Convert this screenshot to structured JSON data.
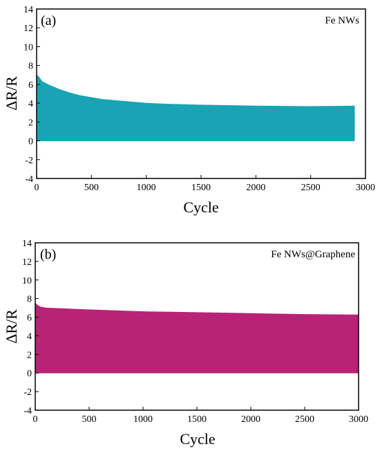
{
  "chart_data": [
    {
      "type": "area",
      "panel_label": "(a)",
      "series": [
        {
          "name": "Fe NWs",
          "color": "#1AA3B4",
          "x": [
            0,
            20,
            50,
            100,
            200,
            300,
            400,
            500,
            600,
            800,
            1000,
            1200,
            1500,
            2000,
            2500,
            2900
          ],
          "upper": [
            7.0,
            6.8,
            6.3,
            6.0,
            5.5,
            5.1,
            4.8,
            4.6,
            4.4,
            4.2,
            4.0,
            3.9,
            3.8,
            3.7,
            3.65,
            3.7
          ],
          "lower": [
            0,
            0,
            0,
            0,
            0,
            0,
            0,
            0,
            0,
            0,
            0,
            0,
            0,
            0,
            0,
            0
          ]
        }
      ],
      "xlabel": "Cycle",
      "ylabel": "ΔR/R",
      "xlim": [
        0,
        3000
      ],
      "ylim": [
        -4,
        14
      ],
      "xticks": [
        0,
        500,
        1000,
        1500,
        2000,
        2500,
        3000
      ],
      "yticks": [
        -4,
        -2,
        0,
        2,
        4,
        6,
        8,
        10,
        12,
        14
      ],
      "legend_position": "top-right",
      "grid": false
    },
    {
      "type": "area",
      "panel_label": "(b)",
      "series": [
        {
          "name": "Fe NWs@Graphene",
          "color": "#B82377",
          "x": [
            0,
            20,
            50,
            100,
            300,
            500,
            1000,
            1500,
            2000,
            2500,
            3000
          ],
          "upper": [
            7.5,
            7.3,
            7.1,
            7.0,
            6.9,
            6.8,
            6.6,
            6.5,
            6.4,
            6.3,
            6.25
          ],
          "lower": [
            0,
            0,
            0,
            0,
            0,
            0,
            0,
            0,
            0,
            0,
            0
          ]
        }
      ],
      "xlabel": "Cycle",
      "ylabel": "ΔR/R",
      "xlim": [
        0,
        3000
      ],
      "ylim": [
        -4,
        14
      ],
      "xticks": [
        0,
        500,
        1000,
        1500,
        2000,
        2500,
        3000
      ],
      "yticks": [
        -4,
        -2,
        0,
        2,
        4,
        6,
        8,
        10,
        12,
        14
      ],
      "legend_position": "top-right",
      "grid": false
    }
  ]
}
